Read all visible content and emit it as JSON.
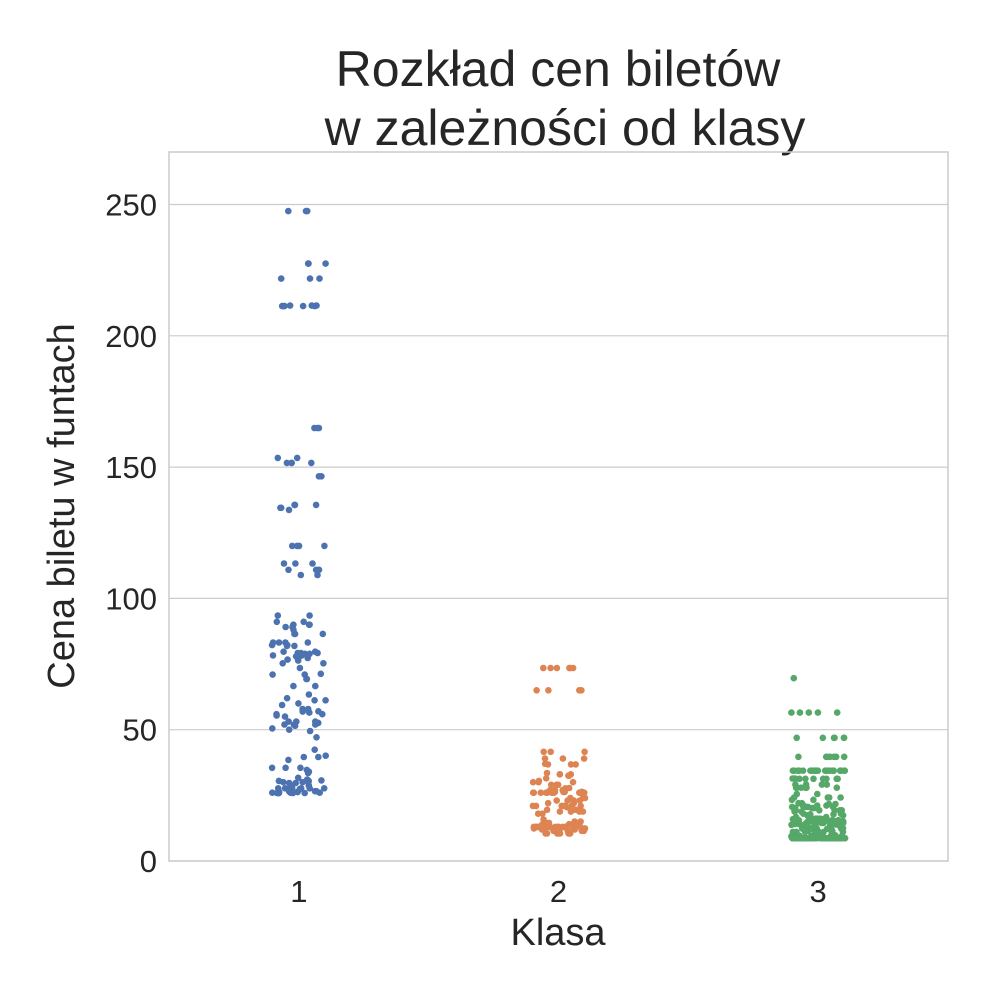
{
  "chart_data": {
    "type": "scatter",
    "subtype": "strip",
    "title_lines": [
      "Rozkład cen biletów",
      "w zależności od klasy"
    ],
    "xlabel": "Klasa",
    "ylabel": "Cena biletu w funtach",
    "categories": [
      "1",
      "2",
      "3"
    ],
    "ylim": [
      0,
      270
    ],
    "yticks": [
      "0",
      "50",
      "100",
      "150",
      "200",
      "250"
    ],
    "grid": "horizontal",
    "colors": [
      "#4c72b0",
      "#dd8452",
      "#55a868"
    ],
    "series": [
      {
        "category": "1",
        "values": [
          247.5,
          247.5,
          247.5,
          227.5,
          227.5,
          227.5,
          221.8,
          221.8,
          221.8,
          211.5,
          211.5,
          211.5,
          211.3,
          211.3,
          211.3,
          211.3,
          211.3,
          164.9,
          164.9,
          164.9,
          153.5,
          153.5,
          151.6,
          151.6,
          151.6,
          151.6,
          146.5,
          146.5,
          135.6,
          135.6,
          135.6,
          134.5,
          134.5,
          133.7,
          120.0,
          120.0,
          120.0,
          120.0,
          113.3,
          113.3,
          113.3,
          110.9,
          110.9,
          110.9,
          108.9,
          108.9,
          93.5,
          93.5,
          91.1,
          91.1,
          90.0,
          90.0,
          90.0,
          89.1,
          89.1,
          88.0,
          86.5,
          86.5,
          86.5,
          83.2,
          83.2,
          83.2,
          83.2,
          82.2,
          82.2,
          81.9,
          81.9,
          79.7,
          79.7,
          79.2,
          79.2,
          79.2,
          78.9,
          78.9,
          78.3,
          78.3,
          77.9,
          77.9,
          77.3,
          76.7,
          76.3,
          75.3,
          75.3,
          73.5,
          71.3,
          71.0,
          71.0,
          69.3,
          69.3,
          66.6,
          66.6,
          63.4,
          62.0,
          61.2,
          61.2,
          60.0,
          59.4,
          57.9,
          57.9,
          57.0,
          56.9,
          56.5,
          55.9,
          55.9,
          55.4,
          55.0,
          53.1,
          53.1,
          53.1,
          52.6,
          52.0,
          52.0,
          51.9,
          51.5,
          50.5,
          50.0,
          49.5,
          47.1,
          42.4,
          40.1,
          39.6,
          39.6,
          38.5,
          35.5,
          35.5,
          35.5,
          34.7,
          34.0,
          33.5,
          31.7,
          31.0,
          30.7,
          30.5,
          30.5,
          30.0,
          30.0,
          30.0,
          29.7,
          29.7,
          28.7,
          28.5,
          27.8,
          27.7,
          27.7,
          27.7,
          27.7,
          27.7,
          27.7,
          27.4,
          26.6,
          26.6,
          26.5,
          26.3,
          26.3,
          26.3,
          26.0,
          26.0,
          26.0,
          25.9,
          25.9,
          25.9,
          25.9,
          25.9,
          25.9
        ]
      },
      {
        "category": "2",
        "values": [
          73.5,
          73.5,
          73.5,
          73.5,
          73.5,
          73.5,
          65.0,
          65.0,
          65.0,
          65.0,
          41.6,
          41.6,
          41.6,
          39.0,
          39.0,
          39.0,
          37.0,
          36.8,
          36.8,
          36.8,
          33.5,
          33.0,
          33.0,
          33.0,
          32.5,
          32.5,
          31.5,
          30.5,
          30.0,
          30.0,
          30.0,
          29.0,
          29.0,
          29.0,
          27.8,
          27.7,
          27.0,
          27.0,
          27.0,
          26.3,
          26.3,
          26.3,
          26.3,
          26.3,
          26.3,
          26.0,
          26.0,
          26.0,
          26.0,
          26.0,
          26.0,
          26.0,
          26.0,
          26.0,
          26.0,
          26.0,
          26.0,
          26.0,
          26.0,
          24.0,
          24.0,
          24.0,
          23.0,
          23.0,
          23.0,
          23.0,
          22.0,
          22.0,
          21.0,
          21.0,
          21.0,
          21.0,
          21.0,
          21.0,
          21.0,
          20.5,
          19.5,
          19.5,
          18.8,
          18.8,
          18.8,
          18.8,
          18.0,
          18.0,
          15.8,
          15.0,
          15.0,
          14.5,
          14.5,
          14.5,
          14.0,
          14.0,
          13.9,
          13.9,
          13.5,
          13.5,
          13.5,
          13.0,
          13.0,
          13.0,
          13.0,
          13.0,
          13.0,
          13.0,
          13.0,
          13.0,
          13.0,
          13.0,
          13.0,
          13.0,
          13.0,
          13.0,
          13.0,
          13.0,
          13.0,
          13.0,
          13.0,
          13.0,
          13.0,
          13.0,
          13.0,
          13.0,
          12.9,
          12.7,
          12.7,
          12.4,
          12.4,
          12.4,
          12.4,
          12.0,
          12.0,
          12.0,
          11.5,
          11.5,
          11.5,
          11.5,
          11.5,
          11.5,
          10.5,
          10.5,
          10.5,
          10.5,
          10.5,
          10.5,
          10.5,
          10.5
        ]
      },
      {
        "category": "3",
        "values": [
          69.6,
          56.5,
          56.5,
          56.5,
          56.5,
          56.5,
          46.9,
          46.9,
          46.9,
          46.9,
          46.9,
          46.9,
          39.7,
          39.7,
          39.7,
          39.7,
          39.7,
          39.7,
          39.7,
          34.4,
          34.4,
          34.4,
          34.4,
          34.4,
          34.4,
          34.4,
          34.4,
          34.4,
          34.4,
          34.4,
          34.4,
          34.4,
          34.4,
          34.4,
          34.4,
          34.4,
          34.4,
          34.4,
          34.4,
          34.4,
          34.4,
          31.4,
          31.4,
          31.3,
          31.3,
          31.3,
          31.3,
          31.3,
          31.3,
          31.3,
          31.3,
          29.1,
          29.1,
          29.1,
          29.1,
          27.9,
          27.9,
          27.9,
          27.9,
          27.9,
          27.9,
          25.5,
          25.5,
          24.2,
          24.2,
          24.2,
          24.2,
          23.3,
          23.3,
          22.0,
          22.0,
          21.7,
          21.7,
          21.1,
          21.1,
          21.1,
          21.1,
          20.6,
          20.6,
          20.6,
          20.6,
          20.2,
          20.2,
          20.2,
          20.2,
          20.2,
          19.3,
          19.3,
          19.3,
          19.3,
          19.3,
          18.8,
          18.8,
          18.0,
          18.0,
          17.8,
          17.8,
          17.4,
          17.4,
          16.7,
          16.7,
          16.7,
          16.1,
          16.1,
          16.1,
          16.1,
          16.1,
          15.9,
          15.9,
          15.5,
          15.5,
          15.5,
          15.5,
          15.5,
          15.5,
          15.2,
          15.2,
          15.2,
          15.2,
          15.2,
          15.1,
          15.1,
          15.1,
          15.0,
          15.0,
          14.5,
          14.5,
          14.5,
          14.5,
          14.5,
          14.5,
          14.5,
          14.5,
          14.5,
          14.5,
          14.4,
          14.4,
          14.4,
          14.4,
          14.1,
          14.1,
          13.9,
          13.9,
          13.8,
          13.8,
          13.4,
          13.4,
          13.4,
          12.5,
          12.5,
          12.5,
          12.5,
          12.3,
          12.3,
          12.3,
          12.3,
          12.3,
          12.3,
          12.3,
          12.3,
          11.5,
          11.5,
          11.5,
          11.1,
          11.1,
          11.1,
          11.1,
          11.1,
          11.1,
          11.1,
          9.8,
          9.8,
          9.8,
          9.8,
          9.6,
          9.6,
          9.6,
          9.6,
          9.5,
          9.5,
          9.5,
          9.5,
          9.5,
          9.2,
          9.2,
          9.2,
          9.2,
          9.2,
          8.9,
          8.9,
          8.9,
          8.9,
          8.7,
          8.7,
          8.7,
          8.7,
          8.7,
          8.7,
          8.7,
          8.7,
          8.7,
          8.7,
          8.7,
          8.7,
          8.7,
          8.7,
          8.7,
          8.7,
          8.7,
          8.7,
          8.7,
          8.7,
          8.7,
          8.7,
          8.7,
          8.7,
          8.7,
          8.7,
          8.7,
          8.7,
          8.7,
          8.7,
          8.7,
          8.7,
          8.7,
          8.7,
          8.7,
          8.7,
          8.7,
          8.7,
          8.7,
          8.7,
          8.7,
          8.7,
          8.7,
          8.7,
          8.7,
          8.7,
          8.7,
          8.7,
          8.7,
          8.7,
          8.7,
          8.7,
          8.7,
          8.7,
          8.7,
          8.7,
          8.7,
          8.7,
          8.7,
          8.7,
          8.7,
          8.7,
          8.7,
          8.7,
          8.7,
          8.7,
          8.7,
          8.7,
          8.7,
          8.7,
          8.7,
          8.7,
          8.7,
          8.7,
          8.7,
          8.7
        ]
      }
    ]
  }
}
